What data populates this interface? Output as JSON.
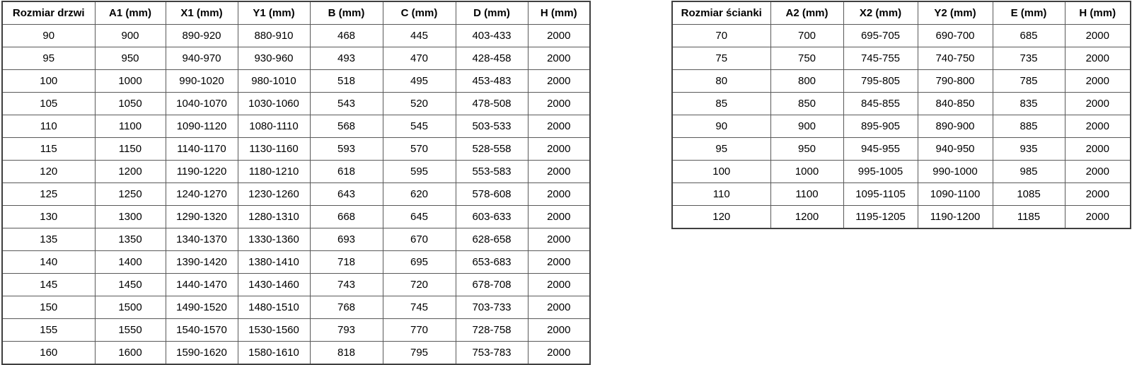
{
  "page": {
    "background_color": "#ffffff",
    "outer_border_color": "#3f3f3f",
    "inner_border_color": "#595959",
    "text_color": "#000000"
  },
  "tables": [
    {
      "id": "door-size-table",
      "headers": [
        "Rozmiar drzwi",
        "A1 (mm)",
        "X1 (mm)",
        "Y1 (mm)",
        "B (mm)",
        "C (mm)",
        "D (mm)",
        "H (mm)"
      ],
      "rows": [
        [
          "90",
          "900",
          "890-920",
          "880-910",
          "468",
          "445",
          "403-433",
          "2000"
        ],
        [
          "95",
          "950",
          "940-970",
          "930-960",
          "493",
          "470",
          "428-458",
          "2000"
        ],
        [
          "100",
          "1000",
          "990-1020",
          "980-1010",
          "518",
          "495",
          "453-483",
          "2000"
        ],
        [
          "105",
          "1050",
          "1040-1070",
          "1030-1060",
          "543",
          "520",
          "478-508",
          "2000"
        ],
        [
          "110",
          "1100",
          "1090-1120",
          "1080-1110",
          "568",
          "545",
          "503-533",
          "2000"
        ],
        [
          "115",
          "1150",
          "1140-1170",
          "1130-1160",
          "593",
          "570",
          "528-558",
          "2000"
        ],
        [
          "120",
          "1200",
          "1190-1220",
          "1180-1210",
          "618",
          "595",
          "553-583",
          "2000"
        ],
        [
          "125",
          "1250",
          "1240-1270",
          "1230-1260",
          "643",
          "620",
          "578-608",
          "2000"
        ],
        [
          "130",
          "1300",
          "1290-1320",
          "1280-1310",
          "668",
          "645",
          "603-633",
          "2000"
        ],
        [
          "135",
          "1350",
          "1340-1370",
          "1330-1360",
          "693",
          "670",
          "628-658",
          "2000"
        ],
        [
          "140",
          "1400",
          "1390-1420",
          "1380-1410",
          "718",
          "695",
          "653-683",
          "2000"
        ],
        [
          "145",
          "1450",
          "1440-1470",
          "1430-1460",
          "743",
          "720",
          "678-708",
          "2000"
        ],
        [
          "150",
          "1500",
          "1490-1520",
          "1480-1510",
          "768",
          "745",
          "703-733",
          "2000"
        ],
        [
          "155",
          "1550",
          "1540-1570",
          "1530-1560",
          "793",
          "770",
          "728-758",
          "2000"
        ],
        [
          "160",
          "1600",
          "1590-1620",
          "1580-1610",
          "818",
          "795",
          "753-783",
          "2000"
        ]
      ]
    },
    {
      "id": "wall-size-table",
      "headers": [
        "Rozmiar ścianki",
        "A2 (mm)",
        "X2 (mm)",
        "Y2 (mm)",
        "E (mm)",
        "H (mm)"
      ],
      "rows": [
        [
          "70",
          "700",
          "695-705",
          "690-700",
          "685",
          "2000"
        ],
        [
          "75",
          "750",
          "745-755",
          "740-750",
          "735",
          "2000"
        ],
        [
          "80",
          "800",
          "795-805",
          "790-800",
          "785",
          "2000"
        ],
        [
          "85",
          "850",
          "845-855",
          "840-850",
          "835",
          "2000"
        ],
        [
          "90",
          "900",
          "895-905",
          "890-900",
          "885",
          "2000"
        ],
        [
          "95",
          "950",
          "945-955",
          "940-950",
          "935",
          "2000"
        ],
        [
          "100",
          "1000",
          "995-1005",
          "990-1000",
          "985",
          "2000"
        ],
        [
          "110",
          "1100",
          "1095-1105",
          "1090-1100",
          "1085",
          "2000"
        ],
        [
          "120",
          "1200",
          "1195-1205",
          "1190-1200",
          "1185",
          "2000"
        ]
      ]
    }
  ]
}
